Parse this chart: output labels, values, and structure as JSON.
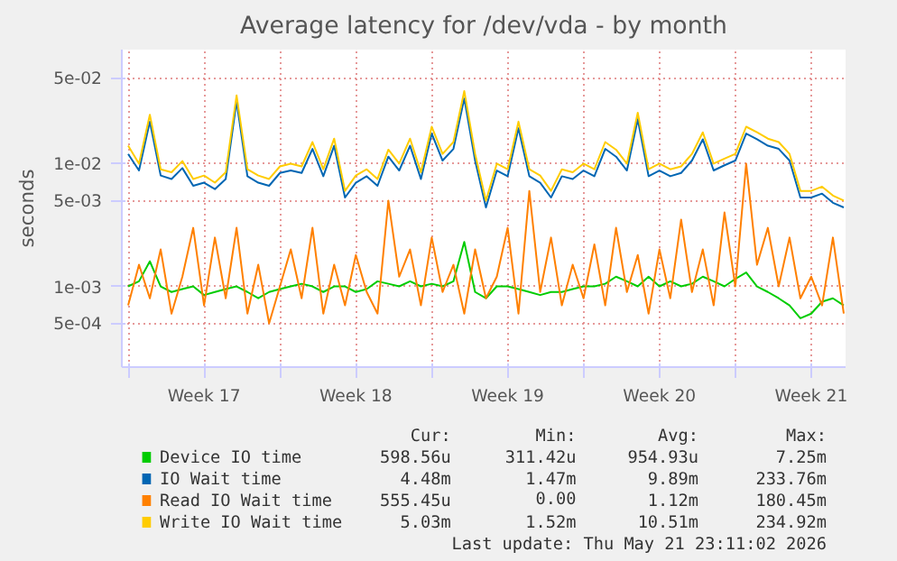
{
  "chart_data": {
    "type": "line",
    "title": "Average latency for /dev/vda - by month",
    "ylabel": "seconds",
    "log": "y",
    "grid": true,
    "legend": "bottom",
    "x": [
      "2026-04-20T00:00",
      "2026-04-20T12:00",
      "2026-04-21T00:00",
      "2026-04-21T12:00",
      "2026-04-22T00:00",
      "2026-04-22T12:00",
      "2026-04-23T00:00",
      "2026-04-23T12:00",
      "2026-04-24T00:00",
      "2026-04-24T12:00",
      "2026-04-25T00:00",
      "2026-04-25T12:00",
      "2026-04-26T00:00",
      "2026-04-26T12:00",
      "2026-04-27T00:00",
      "2026-04-27T12:00",
      "2026-04-28T00:00",
      "2026-04-28T12:00",
      "2026-04-29T00:00",
      "2026-04-29T12:00",
      "2026-04-30T00:00",
      "2026-04-30T12:00",
      "2026-05-01T00:00",
      "2026-05-01T12:00",
      "2026-05-02T00:00",
      "2026-05-02T12:00",
      "2026-05-03T00:00",
      "2026-05-03T12:00",
      "2026-05-04T00:00",
      "2026-05-04T12:00",
      "2026-05-05T00:00",
      "2026-05-05T12:00",
      "2026-05-06T00:00",
      "2026-05-06T12:00",
      "2026-05-07T00:00",
      "2026-05-07T12:00",
      "2026-05-08T00:00",
      "2026-05-08T12:00",
      "2026-05-09T00:00",
      "2026-05-09T12:00",
      "2026-05-10T00:00",
      "2026-05-10T12:00",
      "2026-05-11T00:00",
      "2026-05-11T12:00",
      "2026-05-12T00:00",
      "2026-05-12T12:00",
      "2026-05-13T00:00",
      "2026-05-13T12:00",
      "2026-05-14T00:00",
      "2026-05-14T12:00",
      "2026-05-15T00:00",
      "2026-05-15T12:00",
      "2026-05-16T00:00",
      "2026-05-16T12:00",
      "2026-05-17T00:00",
      "2026-05-17T12:00",
      "2026-05-18T00:00",
      "2026-05-18T12:00",
      "2026-05-19T00:00",
      "2026-05-19T12:00",
      "2026-05-20T00:00",
      "2026-05-20T12:00",
      "2026-05-21T00:00",
      "2026-05-21T12:00",
      "2026-05-22T00:00",
      "2026-05-22T12:00",
      "2026-05-23T00:00"
    ],
    "xlim": [
      "2026-04-19T17:00",
      "2026-05-23T02:00"
    ],
    "xticks": [
      {
        "value": "2026-04-20",
        "label": null
      },
      {
        "value": "2026-04-23T12:00",
        "label": "Week 17"
      },
      {
        "value": "2026-04-27",
        "label": null
      },
      {
        "value": "2026-04-30T12:00",
        "label": "Week 18"
      },
      {
        "value": "2026-05-04",
        "label": null
      },
      {
        "value": "2026-05-07T12:00",
        "label": "Week 19"
      },
      {
        "value": "2026-05-11",
        "label": null
      },
      {
        "value": "2026-05-14T12:00",
        "label": "Week 20"
      },
      {
        "value": "2026-05-18",
        "label": null
      },
      {
        "value": "2026-05-21T12:00",
        "label": "Week 21"
      }
    ],
    "ylim": [
      0.00022,
      0.085
    ],
    "yticks": [
      {
        "value": 0.0005,
        "label": "5e-04"
      },
      {
        "value": 0.001,
        "label": "1e-03"
      },
      {
        "value": 0.005,
        "label": "5e-03"
      },
      {
        "value": 0.01,
        "label": "1e-02"
      },
      {
        "value": 0.05,
        "label": "5e-02"
      }
    ],
    "series": [
      {
        "name": "Device IO time",
        "color": "#00cc00",
        "values": [
          0.001,
          0.0011,
          0.0016,
          0.001,
          0.0009,
          0.00095,
          0.001,
          0.00085,
          0.0009,
          0.00095,
          0.001,
          0.0009,
          0.0008,
          0.0009,
          0.00095,
          0.001,
          0.00105,
          0.001,
          0.0009,
          0.001,
          0.001,
          0.0009,
          0.00095,
          0.0011,
          0.00105,
          0.001,
          0.0011,
          0.001,
          0.00105,
          0.001,
          0.0011,
          0.0023,
          0.0009,
          0.0008,
          0.001,
          0.001,
          0.00095,
          0.0009,
          0.00085,
          0.0009,
          0.0009,
          0.00095,
          0.001,
          0.001,
          0.00105,
          0.0012,
          0.0011,
          0.001,
          0.0012,
          0.001,
          0.0011,
          0.001,
          0.00105,
          0.0012,
          0.0011,
          0.001,
          0.00115,
          0.0013,
          0.001,
          0.0009,
          0.0008,
          0.0007,
          0.00055,
          0.0006,
          0.00075,
          0.0008,
          0.0007
        ]
      },
      {
        "name": "IO Wait time",
        "color": "#0066b3",
        "values": [
          0.012,
          0.0088,
          0.022,
          0.008,
          0.0075,
          0.0092,
          0.0066,
          0.007,
          0.0062,
          0.0075,
          0.032,
          0.0079,
          0.007,
          0.0066,
          0.0084,
          0.0088,
          0.0084,
          0.0132,
          0.0079,
          0.014,
          0.0053,
          0.007,
          0.0079,
          0.0066,
          0.0114,
          0.0088,
          0.014,
          0.0075,
          0.0176,
          0.0106,
          0.0132,
          0.034,
          0.0106,
          0.0044,
          0.0088,
          0.0079,
          0.0194,
          0.0079,
          0.007,
          0.0053,
          0.0079,
          0.0075,
          0.0088,
          0.0079,
          0.0132,
          0.0114,
          0.0088,
          0.023,
          0.0079,
          0.0088,
          0.0079,
          0.0084,
          0.0106,
          0.0158,
          0.0088,
          0.0097,
          0.0106,
          0.0176,
          0.0158,
          0.014,
          0.0132,
          0.0106,
          0.0053,
          0.0053,
          0.0057,
          0.0048,
          0.0044
        ]
      },
      {
        "name": "Read IO Wait time",
        "color": "#ff8000",
        "values": [
          0.0007,
          0.0015,
          0.0008,
          0.002,
          0.0006,
          0.0012,
          0.003,
          0.0007,
          0.0025,
          0.0008,
          0.003,
          0.0006,
          0.0015,
          0.0005,
          0.001,
          0.002,
          0.0008,
          0.003,
          0.0006,
          0.0015,
          0.0007,
          0.0018,
          0.0009,
          0.0006,
          0.005,
          0.0012,
          0.002,
          0.0007,
          0.0025,
          0.0009,
          0.0015,
          0.0006,
          0.002,
          0.0008,
          0.0012,
          0.003,
          0.0006,
          0.006,
          0.0009,
          0.0025,
          0.0007,
          0.0015,
          0.0008,
          0.0022,
          0.0007,
          0.003,
          0.0009,
          0.0018,
          0.0006,
          0.002,
          0.0008,
          0.0035,
          0.0009,
          0.002,
          0.0007,
          0.004,
          0.001,
          0.01,
          0.0015,
          0.003,
          0.001,
          0.0025,
          0.0008,
          0.0012,
          0.0007,
          0.0025,
          0.0006
        ]
      },
      {
        "name": "Write IO Wait time",
        "color": "#ffcc00",
        "values": [
          0.014,
          0.01,
          0.025,
          0.009,
          0.0085,
          0.0105,
          0.0075,
          0.008,
          0.007,
          0.0085,
          0.036,
          0.009,
          0.008,
          0.0075,
          0.0095,
          0.01,
          0.0095,
          0.015,
          0.009,
          0.016,
          0.006,
          0.008,
          0.009,
          0.0075,
          0.013,
          0.01,
          0.016,
          0.0085,
          0.02,
          0.012,
          0.015,
          0.039,
          0.012,
          0.005,
          0.01,
          0.009,
          0.022,
          0.009,
          0.008,
          0.006,
          0.009,
          0.0085,
          0.01,
          0.009,
          0.015,
          0.013,
          0.01,
          0.026,
          0.009,
          0.01,
          0.009,
          0.0095,
          0.012,
          0.018,
          0.01,
          0.011,
          0.012,
          0.02,
          0.018,
          0.016,
          0.015,
          0.012,
          0.006,
          0.006,
          0.0065,
          0.0055,
          0.005
        ]
      }
    ],
    "annotations": [
      "Cur:",
      "Min:",
      "Avg:",
      "Max:",
      "598.56u",
      "311.42u",
      "954.93u",
      "7.25m",
      "4.48m",
      "1.47m",
      "9.89m",
      "233.76m",
      "555.45u",
      "0.00",
      "1.12m",
      "180.45m",
      "5.03m",
      "1.52m",
      "10.51m",
      "234.92m",
      "Last update: Thu May 21 23:11:02 2026"
    ]
  }
}
